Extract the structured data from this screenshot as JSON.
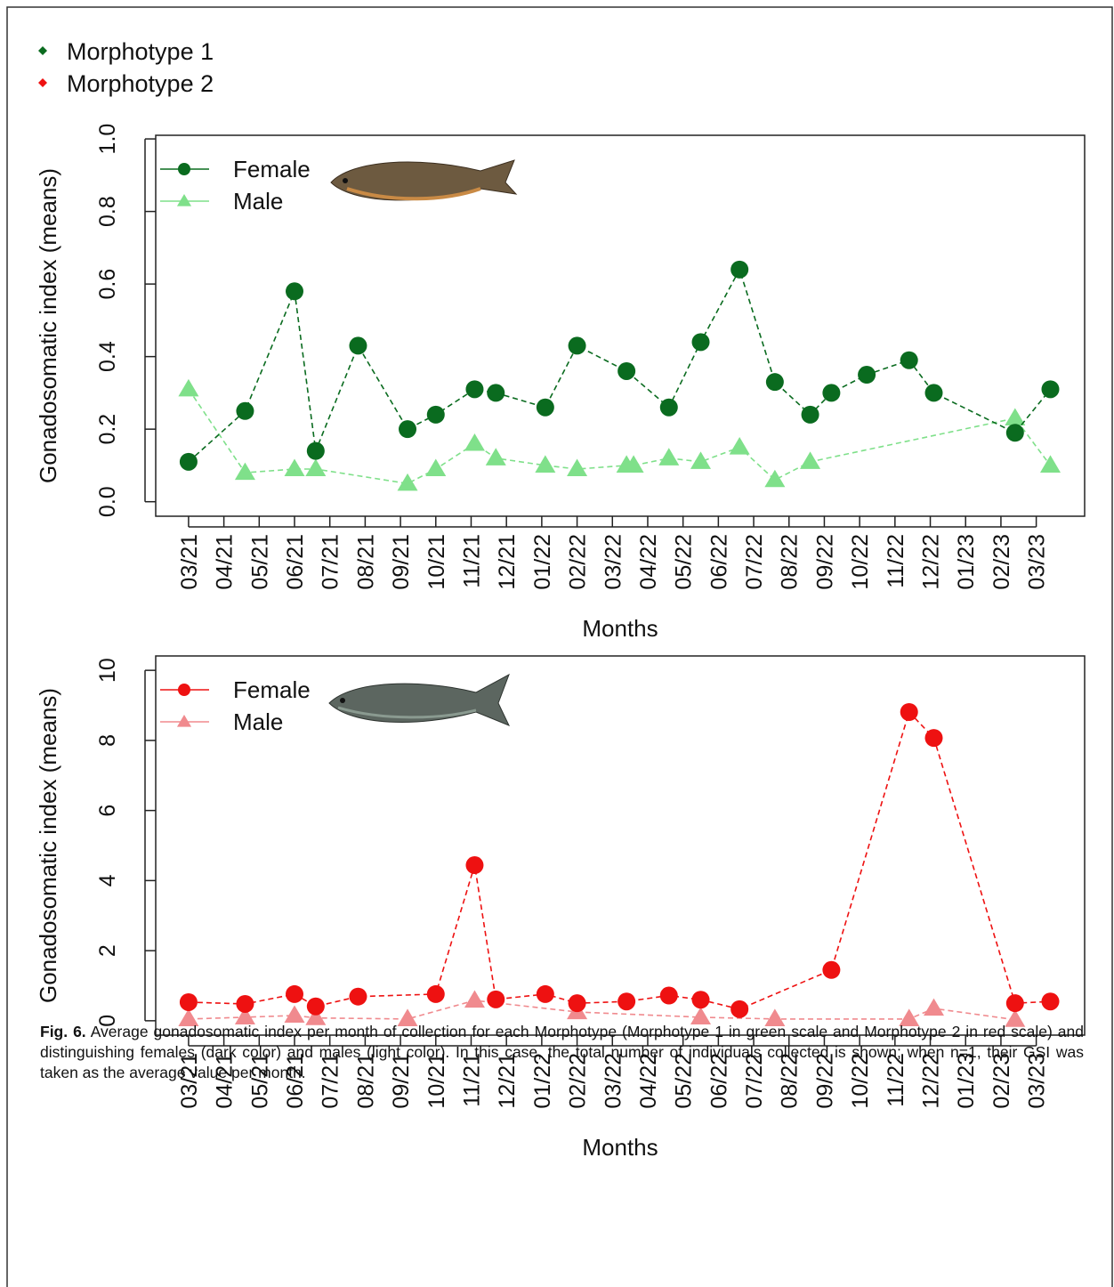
{
  "figure_legend": [
    {
      "label": "Morphotype 1",
      "color": "#0a6b1f"
    },
    {
      "label": "Morphotype 2",
      "color": "#ee1111"
    }
  ],
  "chart_data": [
    {
      "type": "line",
      "ylabel": "Gonadosomatic index (means)",
      "xlabel": "Months",
      "xlim": [
        -0.93,
        25.37
      ],
      "ylim": [
        -0.04,
        1.01
      ],
      "xticks": [
        {
          "value": 0,
          "label": "03/21"
        },
        {
          "value": 1,
          "label": "04/21"
        },
        {
          "value": 2,
          "label": "05/21"
        },
        {
          "value": 3,
          "label": "06/21"
        },
        {
          "value": 4,
          "label": "07/21"
        },
        {
          "value": 5,
          "label": "08/21"
        },
        {
          "value": 6,
          "label": "09/21"
        },
        {
          "value": 7,
          "label": "10/21"
        },
        {
          "value": 8,
          "label": "11/21"
        },
        {
          "value": 9,
          "label": "12/21"
        },
        {
          "value": 10,
          "label": "01/22"
        },
        {
          "value": 11,
          "label": "02/22"
        },
        {
          "value": 12,
          "label": "03/22"
        },
        {
          "value": 13,
          "label": "04/22"
        },
        {
          "value": 14,
          "label": "05/22"
        },
        {
          "value": 15,
          "label": "06/22"
        },
        {
          "value": 16,
          "label": "07/22"
        },
        {
          "value": 17,
          "label": "08/22"
        },
        {
          "value": 18,
          "label": "09/22"
        },
        {
          "value": 19,
          "label": "10/22"
        },
        {
          "value": 20,
          "label": "11/22"
        },
        {
          "value": 21,
          "label": "12/22"
        },
        {
          "value": 22,
          "label": "01/23"
        },
        {
          "value": 23,
          "label": "02/23"
        },
        {
          "value": 24,
          "label": "03/23"
        }
      ],
      "yticks": [
        {
          "value": 0,
          "label": "0.0"
        },
        0.2,
        0.4,
        0.6,
        0.8,
        {
          "value": 1,
          "label": "1.0"
        }
      ],
      "legend_position": "upper-left",
      "series": [
        {
          "name": "Female",
          "color": "#0a6b1f",
          "marker": "circle",
          "x": [
            0,
            1.6,
            3.0,
            3.6,
            4.8,
            6.2,
            7.0,
            8.1,
            8.7,
            10.1,
            11.0,
            12.4,
            13.6,
            14.5,
            15.6,
            16.6,
            17.6,
            18.2,
            19.2,
            20.4,
            21.1,
            23.4,
            24.4
          ],
          "values": [
            0.11,
            0.25,
            0.58,
            0.14,
            0.43,
            0.2,
            0.24,
            0.31,
            0.3,
            0.26,
            0.43,
            0.36,
            0.26,
            0.44,
            0.64,
            0.33,
            0.24,
            0.3,
            0.35,
            0.39,
            0.3,
            0.19,
            0.31
          ]
        },
        {
          "name": "Male",
          "color": "#7fe08a",
          "marker": "triangle",
          "x": [
            0,
            1.6,
            3.0,
            3.6,
            6.2,
            7.0,
            8.1,
            8.7,
            10.1,
            11.0,
            12.4,
            12.6,
            13.6,
            14.5,
            15.6,
            16.6,
            17.6,
            23.4,
            24.4
          ],
          "values": [
            0.31,
            0.08,
            0.09,
            0.09,
            0.05,
            0.09,
            0.16,
            0.12,
            0.1,
            0.09,
            0.1,
            0.1,
            0.12,
            0.11,
            0.15,
            0.06,
            0.11,
            0.23,
            0.1
          ]
        }
      ]
    },
    {
      "type": "line",
      "ylabel": "Gonadosomatic index (means)",
      "xlabel": "Months",
      "xlim": [
        -0.93,
        25.37
      ],
      "ylim": [
        -0.41,
        10.41
      ],
      "xticks": [
        {
          "value": 0,
          "label": "03/21"
        },
        {
          "value": 1,
          "label": "04/21"
        },
        {
          "value": 2,
          "label": "05/21"
        },
        {
          "value": 3,
          "label": "06/21"
        },
        {
          "value": 4,
          "label": "07/21"
        },
        {
          "value": 5,
          "label": "08/21"
        },
        {
          "value": 6,
          "label": "09/21"
        },
        {
          "value": 7,
          "label": "10/21"
        },
        {
          "value": 8,
          "label": "11/21"
        },
        {
          "value": 9,
          "label": "12/21"
        },
        {
          "value": 10,
          "label": "01/22"
        },
        {
          "value": 11,
          "label": "02/22"
        },
        {
          "value": 12,
          "label": "03/22"
        },
        {
          "value": 13,
          "label": "04/22"
        },
        {
          "value": 14,
          "label": "05/22"
        },
        {
          "value": 15,
          "label": "06/22"
        },
        {
          "value": 16,
          "label": "07/22"
        },
        {
          "value": 17,
          "label": "08/22"
        },
        {
          "value": 18,
          "label": "09/22"
        },
        {
          "value": 19,
          "label": "10/22"
        },
        {
          "value": 20,
          "label": "11/22"
        },
        {
          "value": 21,
          "label": "12/22"
        },
        {
          "value": 22,
          "label": "01/23"
        },
        {
          "value": 23,
          "label": "02/23"
        },
        {
          "value": 24,
          "label": "03/23"
        }
      ],
      "yticks": [
        0,
        2,
        4,
        6,
        8,
        10
      ],
      "legend_position": "upper-left",
      "series": [
        {
          "name": "Female",
          "color": "#ee1111",
          "marker": "circle",
          "x": [
            0,
            1.6,
            3.0,
            3.6,
            4.8,
            7.0,
            8.1,
            8.7,
            10.1,
            11.0,
            12.4,
            13.6,
            14.5,
            15.6,
            18.2,
            20.4,
            21.1,
            23.4,
            24.4
          ],
          "values": [
            0.53,
            0.48,
            0.76,
            0.41,
            0.69,
            0.76,
            4.44,
            0.61,
            0.76,
            0.5,
            0.55,
            0.72,
            0.6,
            0.33,
            1.45,
            8.81,
            8.07,
            0.5,
            0.55
          ]
        },
        {
          "name": "Male",
          "color": "#f08a8e",
          "marker": "triangle",
          "x": [
            0,
            1.6,
            3.0,
            3.6,
            6.2,
            8.1,
            11.0,
            14.5,
            16.6,
            20.4,
            21.1,
            23.4
          ],
          "values": [
            0.05,
            0.1,
            0.15,
            0.08,
            0.05,
            0.58,
            0.25,
            0.1,
            0.05,
            0.05,
            0.35,
            0.03
          ]
        }
      ]
    }
  ],
  "caption": {
    "label": "Fig. 6.",
    "text": "Average gonadosomatic index per month of collection for each Morphotype (Morphotype 1 in green scale and Morphotype 2 in red scale) and distinguishing females (dark color) and males (light color). In this case, the total number of individuals collected is shown; when n=1, their GSI was taken as the average value per month."
  }
}
